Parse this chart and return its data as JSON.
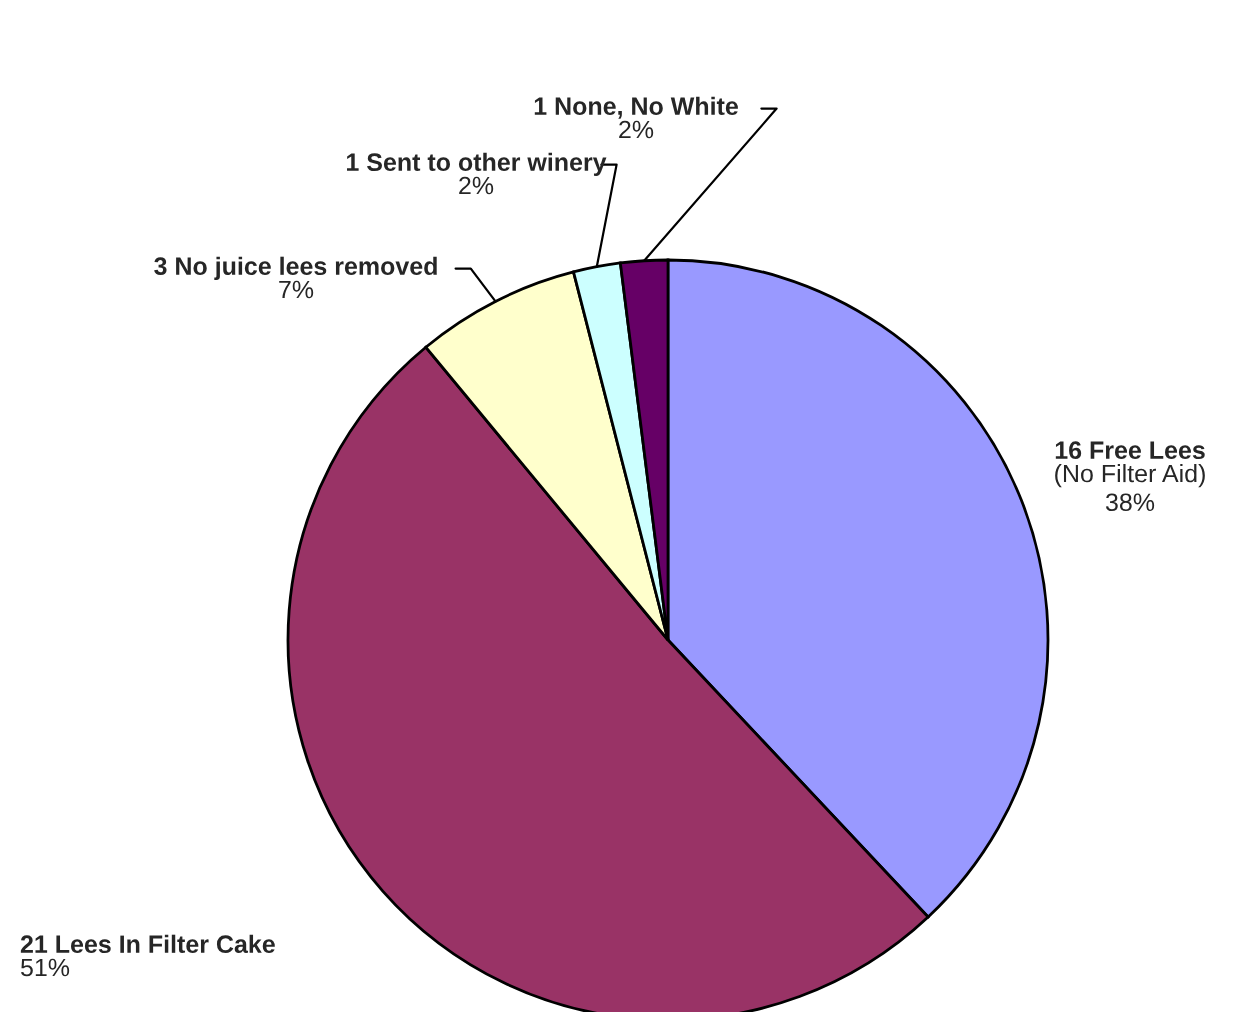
{
  "chart_data": {
    "type": "pie",
    "categories": [
      "16 Free Lees\n(No Filter Aid)",
      "21 Lees In Filter Cake",
      "3 No juice lees removed",
      "1 Sent to other winery",
      "1 None, No White"
    ],
    "values": [
      38,
      51,
      7,
      2,
      2
    ],
    "value_labels": [
      "38%",
      "51%",
      "7%",
      "2%",
      "2%"
    ],
    "colors": [
      "#9999ff",
      "#993366",
      "#ffffcc",
      "#ccffff",
      "#660066"
    ]
  }
}
